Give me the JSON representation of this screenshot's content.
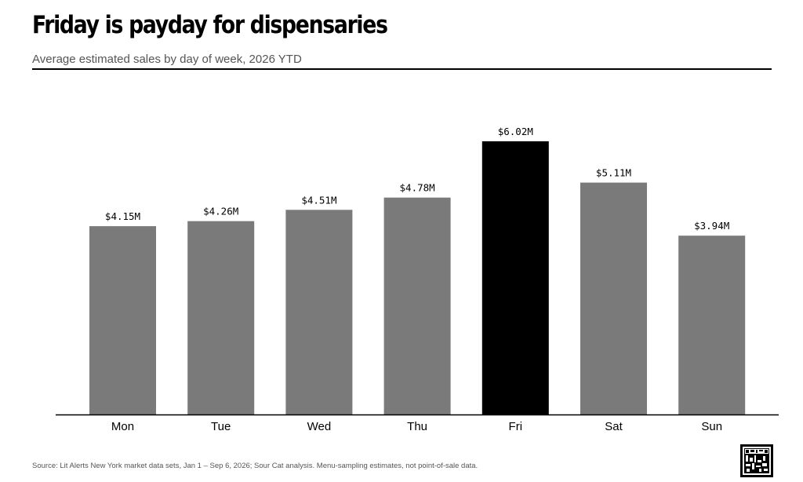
{
  "header": {
    "title": "Friday is payday for dispensaries",
    "subtitle": "Average estimated sales by day of week, 2026 YTD"
  },
  "footer": {
    "source": "Source: Lit Alerts New York market data sets, Jan 1 – Sep 6, 2026; Sour Cat analysis. Menu-sampling estimates, not point-of-sale data."
  },
  "colors": {
    "bar": "#7a7a7a",
    "highlight": "#000000"
  },
  "chart_data": {
    "type": "bar",
    "title": "Friday is payday for dispensaries",
    "subtitle": "Average estimated sales by day of week, 2026 YTD",
    "categories": [
      "Mon",
      "Tue",
      "Wed",
      "Thu",
      "Fri",
      "Sat",
      "Sun"
    ],
    "values": [
      4.15,
      4.26,
      4.51,
      4.78,
      6.02,
      5.11,
      3.94
    ],
    "value_labels": [
      "$4.15M",
      "$4.26M",
      "$4.51M",
      "$4.78M",
      "$6.02M",
      "$5.11M",
      "$3.94M"
    ],
    "unit": "$M",
    "highlight": "Fri",
    "xlabel": "",
    "ylabel": "",
    "ylim": [
      0,
      6.02
    ],
    "grid": false,
    "legend": "none"
  }
}
